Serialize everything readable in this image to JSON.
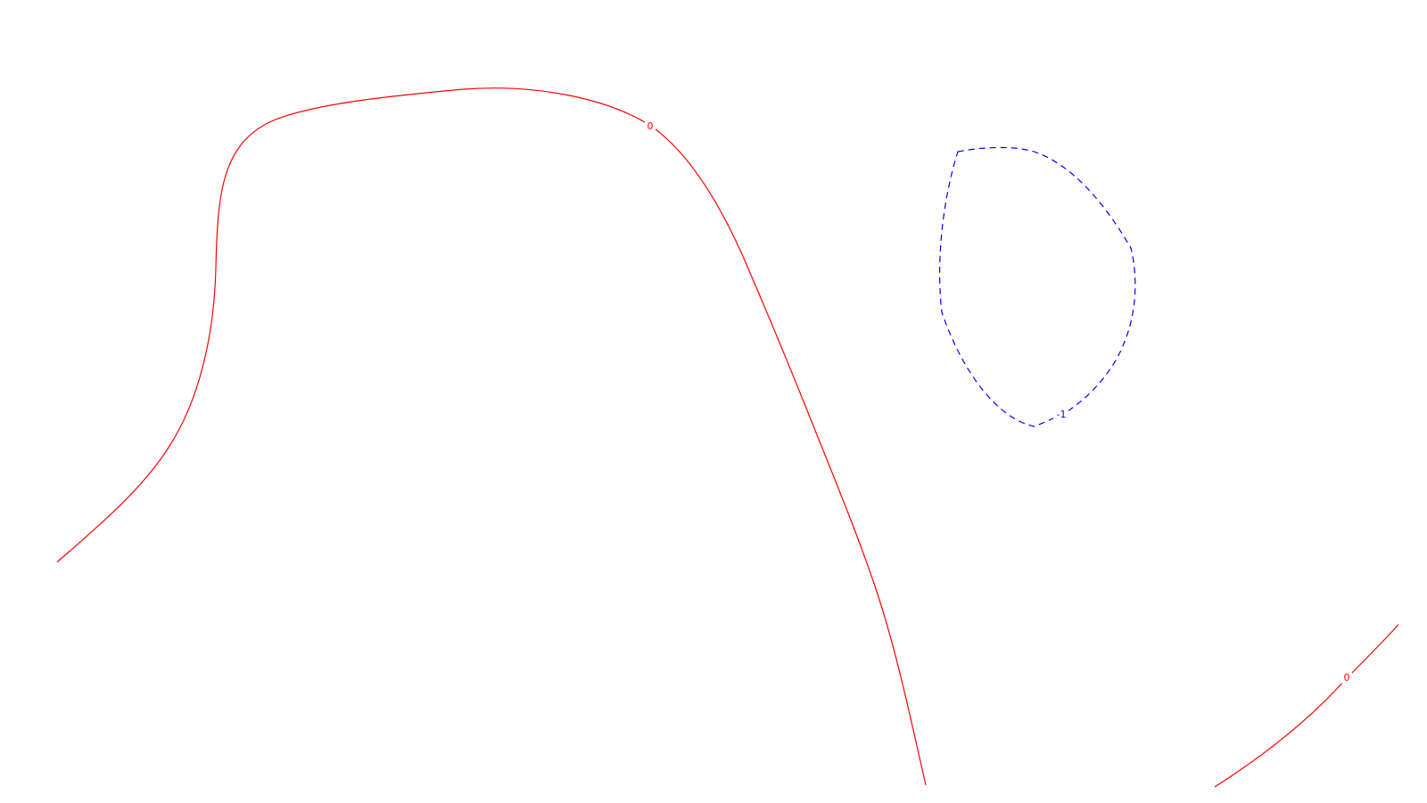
{
  "chart_data": {
    "type": "contour",
    "title": "",
    "xlabel": "",
    "ylabel": "",
    "grid": false,
    "axes_visible": false,
    "colors": {
      "background": "#ffffff",
      "level_0": "#ff0000",
      "level_neg1": "#0000ff"
    },
    "levels": [
      {
        "level": 0,
        "label": "0",
        "style": "solid",
        "color": "#ff0000"
      },
      {
        "level": -1,
        "label": "-1",
        "style": "dashed",
        "color": "#0000ff"
      }
    ]
  }
}
